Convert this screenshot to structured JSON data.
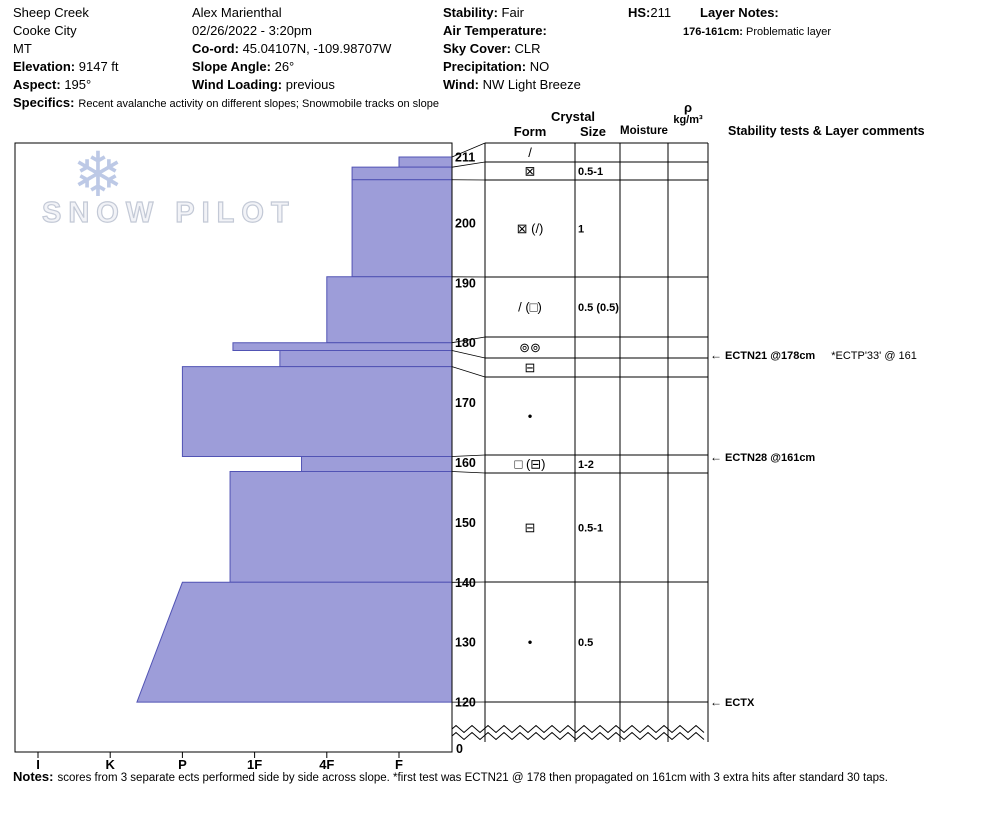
{
  "header": {
    "pit_name": "Sheep Creek",
    "place": "Cooke City",
    "state": "MT",
    "elevation_label": "Elevation:",
    "elevation": "9147 ft",
    "aspect_label": "Aspect:",
    "aspect": "195°",
    "observer": "Alex Marienthal",
    "datetime": "02/26/2022 - 3:20pm",
    "coord_label": "Co-ord:",
    "coord": "45.04107N, -109.98707W",
    "slope_angle_label": "Slope Angle:",
    "slope_angle": "26°",
    "wind_loading_label": "Wind Loading:",
    "wind_loading": "previous",
    "stability_label": "Stability:",
    "stability": "Fair",
    "air_temp_label": "Air Temperature:",
    "air_temp": "",
    "sky_label": "Sky Cover:",
    "sky": "CLR",
    "precip_label": "Precipitation:",
    "precip": "NO",
    "wind_label": "Wind:",
    "wind": "NW Light Breeze",
    "hs_label": "HS:",
    "hs": "211",
    "layer_notes_label": "Layer Notes:",
    "layer_note_range": "176-161cm:",
    "layer_note_text": "Problematic layer",
    "specifics_label": "Specifics:",
    "specifics": "Recent avalanche activity on different slopes;  Snowmobile tracks on slope"
  },
  "watermark": {
    "snowflake": "❄",
    "text": "SNOW PILOT"
  },
  "table_headers": {
    "crystal": "Crystal",
    "form": "Form",
    "size": "Size",
    "moisture": "Moisture",
    "rho": "ρ",
    "rho_units": "kg/m³",
    "stability": "Stability tests & Layer comments"
  },
  "colors": {
    "bar_fill": "#9d9dd9",
    "bar_stroke": "#5153b4",
    "grid": "#000000",
    "watermark_blue": "#b6c4e4",
    "watermark_gray": "#c3c9d6"
  },
  "chart_data": {
    "type": "bar",
    "subtype": "snow-profile-hardness-vs-depth",
    "hs_cm": 211,
    "depth_axis_cm": [
      211,
      200,
      190,
      180,
      170,
      160,
      150,
      140,
      130,
      120
    ],
    "depth_axis_zero": "0",
    "hardness_axis": [
      "I",
      "K",
      "P",
      "1F",
      "4F",
      "F"
    ],
    "layers": [
      {
        "top_cm": 211,
        "bottom_cm": 209.3,
        "hardness": "F",
        "h_index": 6.0,
        "form": "/",
        "size": ""
      },
      {
        "top_cm": 209.3,
        "bottom_cm": 207.2,
        "hardness": "F",
        "h_index": 5.35,
        "form": "⊠",
        "size": "0.5-1"
      },
      {
        "top_cm": 207.2,
        "bottom_cm": 191,
        "hardness": "F",
        "h_index": 5.35,
        "form": "⊠ (/)",
        "size": "1"
      },
      {
        "top_cm": 191,
        "bottom_cm": 180,
        "hardness": "4F",
        "h_index": 5.0,
        "form": "/ (□)",
        "size": "0.5 (0.5)"
      },
      {
        "top_cm": 180,
        "bottom_cm": 178.7,
        "hardness": "1F+",
        "h_index": 3.7,
        "form": "⊚⊚",
        "size": ""
      },
      {
        "top_cm": 178.7,
        "bottom_cm": 176,
        "hardness": "1F",
        "h_index": 4.35,
        "form": "⊟",
        "size": ""
      },
      {
        "top_cm": 176,
        "bottom_cm": 161,
        "hardness": "P",
        "h_index": 3.0,
        "form": "•",
        "size": ""
      },
      {
        "top_cm": 161,
        "bottom_cm": 158.5,
        "hardness": "1F",
        "h_index": 4.65,
        "form": "□ (⊟)",
        "size": "1-2"
      },
      {
        "top_cm": 158.5,
        "bottom_cm": 140,
        "hardness": "1F+",
        "h_index": 3.66,
        "form": "⊟",
        "size": "0.5-1"
      },
      {
        "top_cm": 140,
        "bottom_cm": 120,
        "hardness": "P",
        "h_index": 3.0,
        "h_index_bottom": 2.37,
        "form": "•",
        "size": "0.5"
      }
    ],
    "tests": [
      {
        "depth_cm": 178,
        "label": "ECTN21 @178cm",
        "extra": "*ECTP'33' @ 161"
      },
      {
        "depth_cm": 161,
        "label": "ECTN28 @161cm",
        "extra": ""
      },
      {
        "depth_cm": 120,
        "label": "ECTX",
        "extra": ""
      }
    ]
  },
  "notes": {
    "label": "Notes:",
    "text": "scores from 3 separate ects performed side by side across slope. *first test was ECTN21 @ 178 then propagated on 161cm with 3 extra hits after standard 30 taps."
  }
}
